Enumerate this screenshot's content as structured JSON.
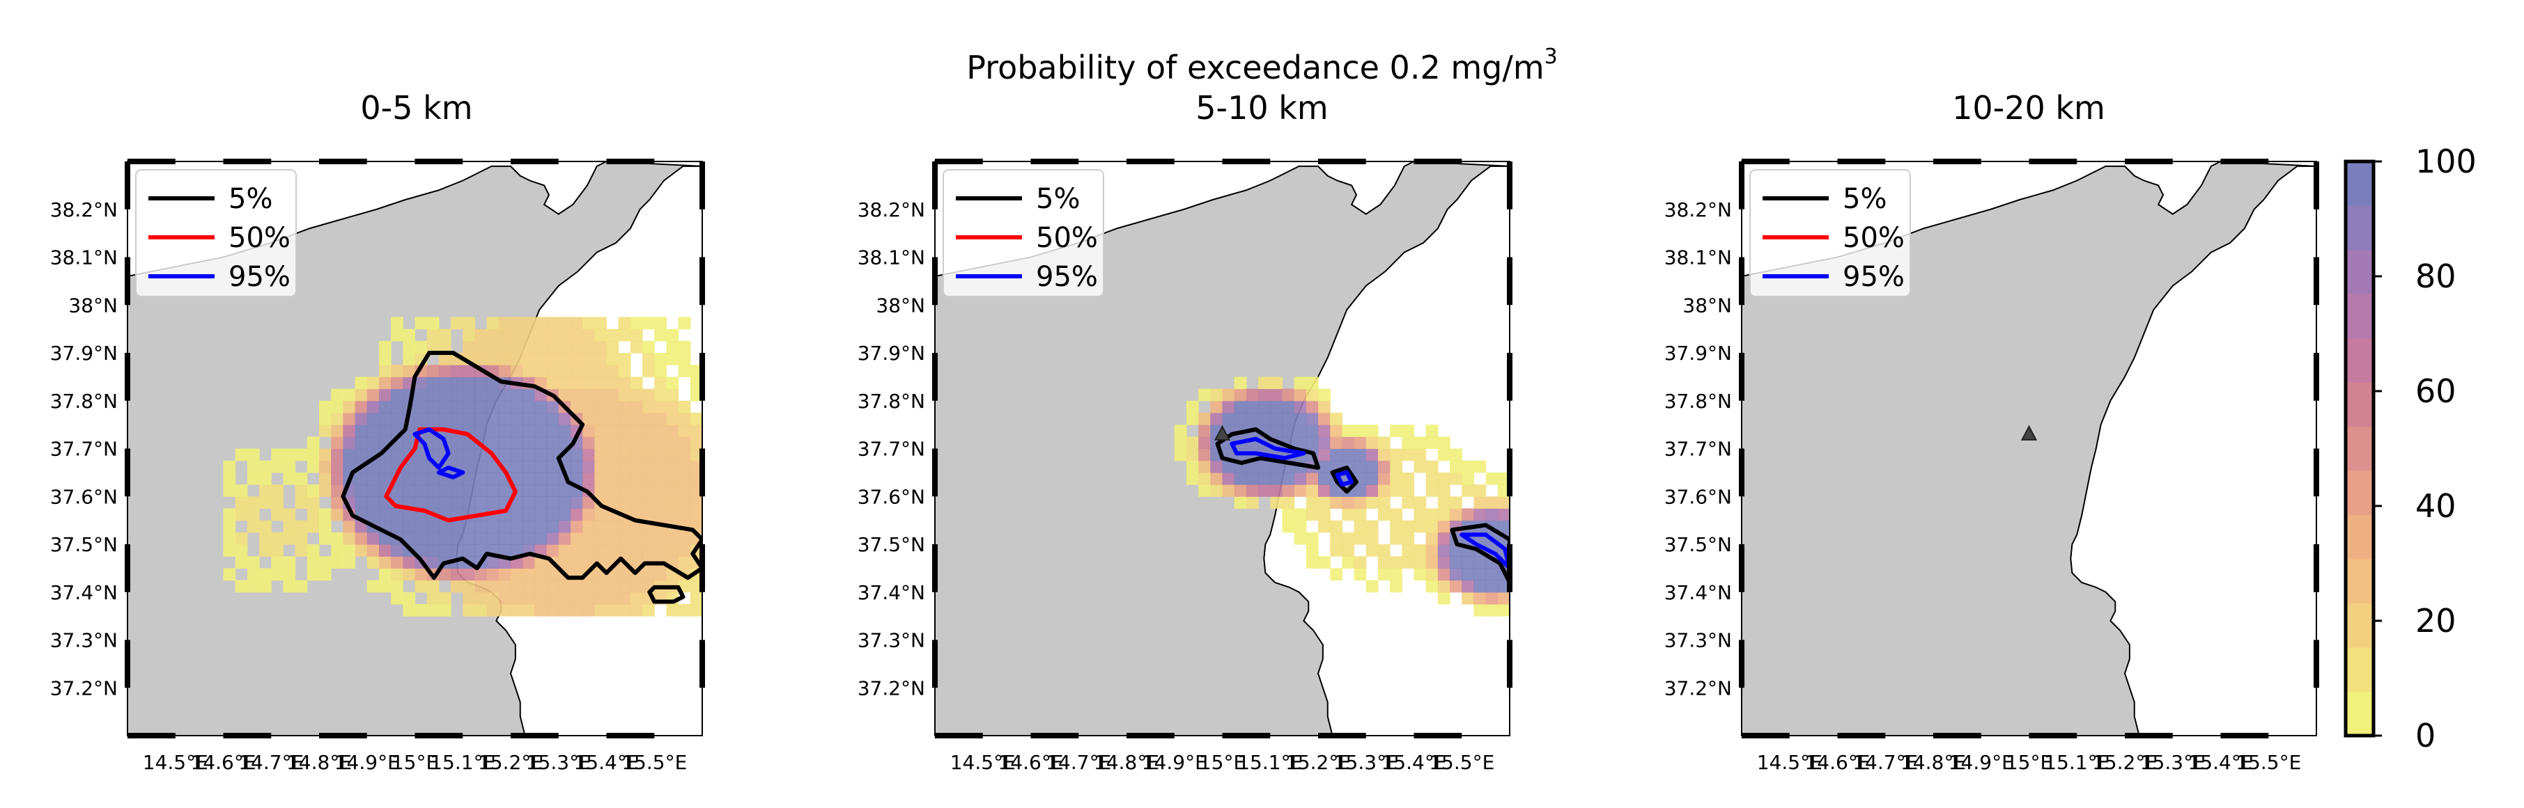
{
  "figure_title": {
    "line1_main": "Probability of exceedance 0.2 mg/m",
    "line1_sup": "3",
    "line2": "5-10 km"
  },
  "legend": {
    "entries": [
      {
        "label": "5%",
        "color": "#000000"
      },
      {
        "label": "50%",
        "color": "#ff0000"
      },
      {
        "label": "95%",
        "color": "#0000ff"
      }
    ]
  },
  "colorbar": {
    "ticks": [
      "0",
      "20",
      "40",
      "60",
      "80",
      "100"
    ],
    "range": [
      0,
      100
    ],
    "colors_low_to_high": [
      "#f0f07a",
      "#f2e07d",
      "#f3d07f",
      "#f2c081",
      "#efb184",
      "#e8a087",
      "#dd918c",
      "#d28393",
      "#c57a9f",
      "#b67aac",
      "#a47ab5",
      "#8e7dba",
      "#7a7fbc"
    ]
  },
  "map": {
    "land_color": "#c8c8c8",
    "sea_color": "#ffffff",
    "lon_range": [
      14.4,
      15.6
    ],
    "lat_range": [
      37.1,
      38.3
    ],
    "lon_ticks": [
      "14.5°E",
      "14.6°E",
      "14.7°E",
      "14.8°E",
      "14.9°E",
      "15°E",
      "15.1°E",
      "15.2°E",
      "15.3°E",
      "15.4°E",
      "15.5°E"
    ],
    "lat_ticks": [
      "38.2°N",
      "38.1°N",
      "38°N",
      "37.9°N",
      "37.8°N",
      "37.7°N",
      "37.6°N",
      "37.5°N",
      "37.4°N",
      "37.3°N",
      "37.2°N"
    ]
  },
  "chart_data": [
    {
      "type": "heatmap",
      "title": "0-5 km",
      "value": "probability (%)",
      "vent_marker": false,
      "region_summary": [
        {
          "lon": [
            14.95,
            15.25
          ],
          "lat": [
            37.58,
            37.75
          ],
          "probability_max": 100
        },
        {
          "lon": [
            14.85,
            15.35
          ],
          "lat": [
            37.45,
            37.85
          ],
          "probability_min": 5
        },
        {
          "lon": [
            14.6,
            15.55
          ],
          "lat": [
            37.35,
            37.95
          ],
          "probability_min": 1
        }
      ],
      "contour_levels": [
        "5%",
        "50%",
        "95%"
      ]
    },
    {
      "type": "heatmap",
      "title": "5-10 km",
      "value": "probability (%)",
      "vent_marker": true,
      "region_summary": [
        {
          "lon": [
            14.98,
            15.2
          ],
          "lat": [
            37.66,
            37.73
          ],
          "probability_max": 100
        },
        {
          "lon": [
            15.22,
            15.28
          ],
          "lat": [
            37.62,
            37.66
          ],
          "probability_max": 100
        },
        {
          "lon": [
            15.48,
            15.6
          ],
          "lat": [
            37.42,
            37.53
          ],
          "probability_max": 100
        }
      ],
      "contour_levels": [
        "5%",
        "50%",
        "95%"
      ]
    },
    {
      "type": "heatmap",
      "title": "10-20 km",
      "value": "probability (%)",
      "vent_marker": true,
      "region_summary": [],
      "contour_levels": [
        "5%",
        "50%",
        "95%"
      ]
    }
  ]
}
